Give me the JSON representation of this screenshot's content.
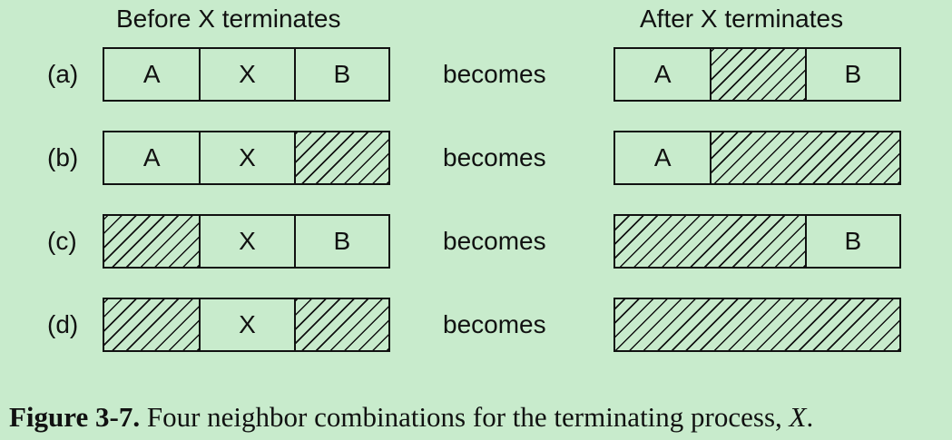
{
  "headers": {
    "before": "Before X terminates",
    "after": "After X terminates"
  },
  "connector": "becomes",
  "rows": [
    {
      "label": "(a)",
      "before": [
        {
          "text": "A",
          "hatched": false,
          "units": 1
        },
        {
          "text": "X",
          "hatched": false,
          "units": 1
        },
        {
          "text": "B",
          "hatched": false,
          "units": 1
        }
      ],
      "after": [
        {
          "text": "A",
          "hatched": false,
          "units": 1
        },
        {
          "text": "",
          "hatched": true,
          "units": 1
        },
        {
          "text": "B",
          "hatched": false,
          "units": 1
        }
      ]
    },
    {
      "label": "(b)",
      "before": [
        {
          "text": "A",
          "hatched": false,
          "units": 1
        },
        {
          "text": "X",
          "hatched": false,
          "units": 1
        },
        {
          "text": "",
          "hatched": true,
          "units": 1
        }
      ],
      "after": [
        {
          "text": "A",
          "hatched": false,
          "units": 1
        },
        {
          "text": "",
          "hatched": true,
          "units": 2
        }
      ]
    },
    {
      "label": "(c)",
      "before": [
        {
          "text": "",
          "hatched": true,
          "units": 1
        },
        {
          "text": "X",
          "hatched": false,
          "units": 1
        },
        {
          "text": "B",
          "hatched": false,
          "units": 1
        }
      ],
      "after": [
        {
          "text": "",
          "hatched": true,
          "units": 2
        },
        {
          "text": "B",
          "hatched": false,
          "units": 1
        }
      ]
    },
    {
      "label": "(d)",
      "before": [
        {
          "text": "",
          "hatched": true,
          "units": 1
        },
        {
          "text": "X",
          "hatched": false,
          "units": 1
        },
        {
          "text": "",
          "hatched": true,
          "units": 1
        }
      ],
      "after": [
        {
          "text": "",
          "hatched": true,
          "units": 3
        }
      ]
    }
  ],
  "caption": {
    "label": "Figure 3-7.",
    "text": "Four neighbor combinations for the terminating process,",
    "process": "X",
    "end": "."
  }
}
